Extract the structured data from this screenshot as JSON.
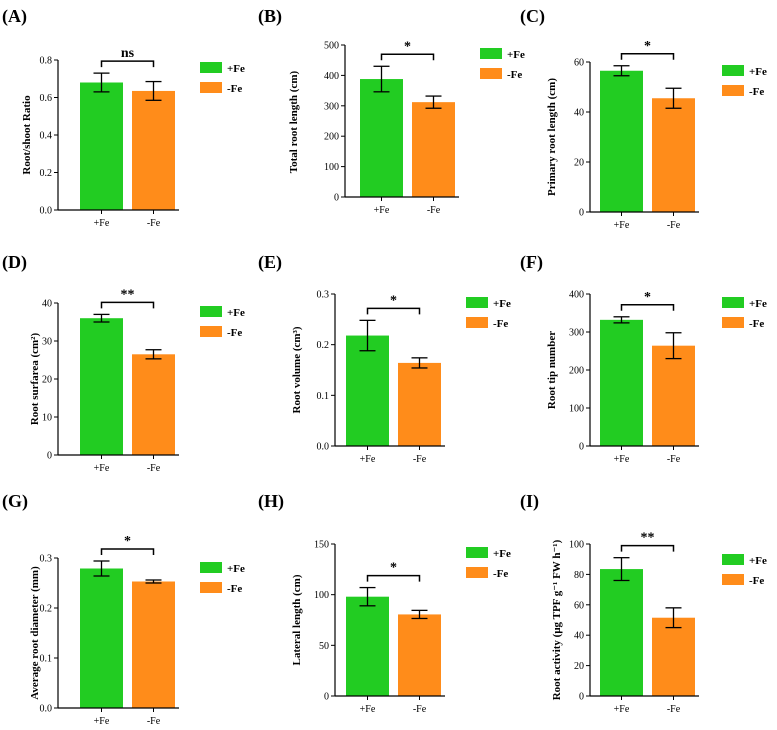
{
  "colors": {
    "+Fe": "#22cc22",
    "-Fe": "#ff8c1a"
  },
  "legend": [
    "+Fe",
    "-Fe"
  ],
  "chart_data": [
    {
      "type": "bar",
      "panel": "(A)",
      "ylabel": "Root/shoot Ratio",
      "categories": [
        "+Fe",
        "-Fe"
      ],
      "values": [
        0.68,
        0.635
      ],
      "errors": [
        0.05,
        0.05
      ],
      "ylim": [
        0,
        0.8
      ],
      "yticks": [
        0.0,
        0.2,
        0.4,
        0.6,
        0.8
      ],
      "ytick_labels": [
        "0.0",
        "0.2",
        "0.4",
        "0.6",
        "0.8"
      ],
      "significance": "ns",
      "legend": "right"
    },
    {
      "type": "bar",
      "panel": "(B)",
      "ylabel": "Total root length (cm)",
      "categories": [
        "+Fe",
        "-Fe"
      ],
      "values": [
        388,
        312
      ],
      "errors": [
        42,
        20
      ],
      "ylim": [
        0,
        500
      ],
      "yticks": [
        0,
        100,
        200,
        300,
        400,
        500
      ],
      "ytick_labels": [
        "0",
        "100",
        "200",
        "300",
        "400",
        "500"
      ],
      "significance": "*",
      "legend": "right"
    },
    {
      "type": "bar",
      "panel": "(C)",
      "ylabel": "Primary root length (cm)",
      "categories": [
        "+Fe",
        "-Fe"
      ],
      "values": [
        56.5,
        45.5
      ],
      "errors": [
        2,
        4
      ],
      "ylim": [
        0,
        60
      ],
      "yticks": [
        0,
        20,
        40,
        60
      ],
      "ytick_labels": [
        "0",
        "20",
        "40",
        "60"
      ],
      "significance": "*",
      "legend": "right"
    },
    {
      "type": "bar",
      "panel": "(D)",
      "ylabel": "Root surfarea (cm²)",
      "categories": [
        "+Fe",
        "-Fe"
      ],
      "values": [
        36,
        26.5
      ],
      "errors": [
        1,
        1.2
      ],
      "ylim": [
        0,
        40
      ],
      "yticks": [
        0,
        10,
        20,
        30,
        40
      ],
      "ytick_labels": [
        "0",
        "10",
        "20",
        "30",
        "40"
      ],
      "significance": "**",
      "legend": "right"
    },
    {
      "type": "bar",
      "panel": "(E)",
      "ylabel": "Root volume (cm³)",
      "categories": [
        "+Fe",
        "-Fe"
      ],
      "values": [
        0.218,
        0.164
      ],
      "errors": [
        0.03,
        0.01
      ],
      "ylim": [
        0,
        0.3
      ],
      "yticks": [
        0.0,
        0.1,
        0.2,
        0.3
      ],
      "ytick_labels": [
        "0.0",
        "0.1",
        "0.2",
        "0.3"
      ],
      "significance": "*",
      "legend": "right"
    },
    {
      "type": "bar",
      "panel": "(F)",
      "ylabel": "Root tip number",
      "categories": [
        "+Fe",
        "-Fe"
      ],
      "values": [
        332,
        264
      ],
      "errors": [
        8,
        34
      ],
      "ylim": [
        0,
        400
      ],
      "yticks": [
        0,
        100,
        200,
        300,
        400
      ],
      "ytick_labels": [
        "0",
        "100",
        "200",
        "300",
        "400"
      ],
      "significance": "*",
      "legend": "right"
    },
    {
      "type": "bar",
      "panel": "(G)",
      "ylabel": "Average root diameter (mm)",
      "categories": [
        "+Fe",
        "-Fe"
      ],
      "values": [
        0.279,
        0.253
      ],
      "errors": [
        0.015,
        0.003
      ],
      "ylim": [
        0,
        0.3
      ],
      "yticks": [
        0.0,
        0.1,
        0.2,
        0.3
      ],
      "ytick_labels": [
        "0.0",
        "0.1",
        "0.2",
        "0.3"
      ],
      "significance": "*",
      "legend": "right"
    },
    {
      "type": "bar",
      "panel": "(H)",
      "ylabel": "Lateral length (cm)",
      "categories": [
        "+Fe",
        "-Fe"
      ],
      "values": [
        98,
        80.5
      ],
      "errors": [
        9,
        4
      ],
      "ylim": [
        0,
        150
      ],
      "yticks": [
        0,
        50,
        100,
        150
      ],
      "ytick_labels": [
        "0",
        "50",
        "100",
        "150"
      ],
      "significance": "*",
      "legend": "right"
    },
    {
      "type": "bar",
      "panel": "(I)",
      "ylabel": "Root activity (μg TPF g⁻¹ FW h⁻¹)",
      "categories": [
        "+Fe",
        "-Fe"
      ],
      "values": [
        83.5,
        51.5
      ],
      "errors": [
        7.5,
        6.5
      ],
      "ylim": [
        0,
        100
      ],
      "yticks": [
        0,
        20,
        40,
        60,
        80,
        100
      ],
      "ytick_labels": [
        "0",
        "20",
        "40",
        "60",
        "80",
        "100"
      ],
      "significance": "**",
      "legend": "right"
    }
  ]
}
